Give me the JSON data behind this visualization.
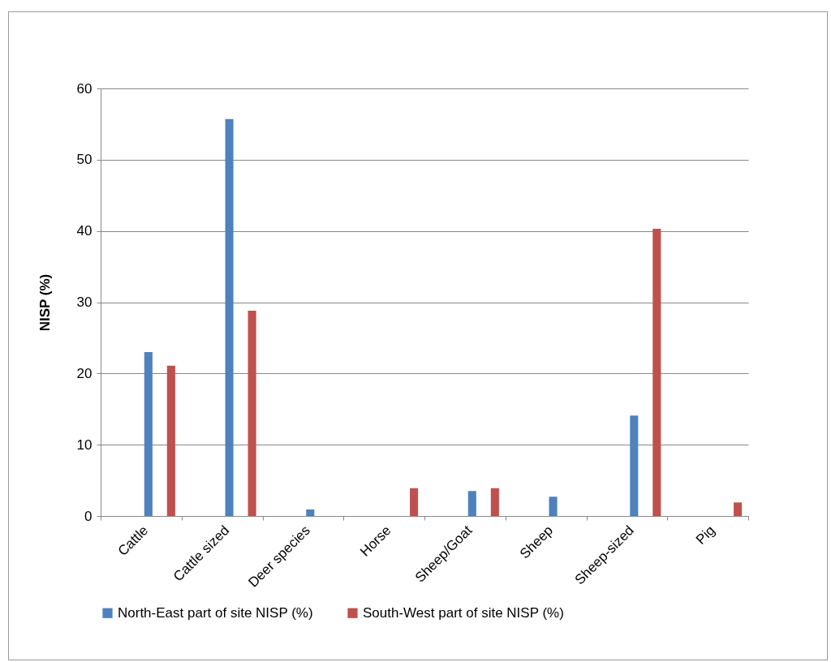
{
  "chart_data": {
    "type": "bar",
    "ylabel": "NISP (%)",
    "categories": [
      "Cattle",
      "Cattle sized",
      "Deer species",
      "Horse",
      "Sheep/Goat",
      "Sheep",
      "Sheep-sized",
      "Pig"
    ],
    "series": [
      {
        "name": "North-East part of site NISP (%)",
        "color": "#4f81bd",
        "values": [
          23.0,
          55.7,
          0.9,
          0,
          3.5,
          2.7,
          14.1,
          0
        ]
      },
      {
        "name": "South-West part of site NISP (%)",
        "color": "#c0504d",
        "values": [
          21.1,
          28.8,
          0,
          3.9,
          3.9,
          0,
          40.3,
          1.9
        ]
      }
    ],
    "ylim": [
      0,
      60
    ],
    "yticks": [
      0,
      10,
      20,
      30,
      40,
      50,
      60
    ],
    "grid": "y",
    "legend": "bottom"
  }
}
